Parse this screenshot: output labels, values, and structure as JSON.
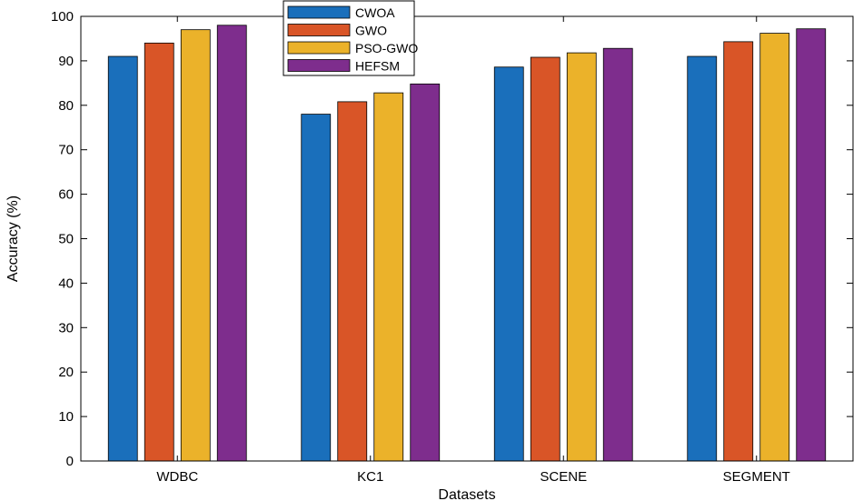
{
  "chart_data": {
    "type": "bar",
    "title": "",
    "xlabel": "Datasets",
    "ylabel": "Accuracy (%)",
    "ylim": [
      0,
      100
    ],
    "yticks": [
      0,
      10,
      20,
      30,
      40,
      50,
      60,
      70,
      80,
      90,
      100
    ],
    "categories": [
      "WDBC",
      "KC1",
      "SCENE",
      "SEGMENT"
    ],
    "series": [
      {
        "name": "CWOA",
        "color": "#1a6fbb",
        "values": [
          91,
          78,
          88.6,
          91
        ]
      },
      {
        "name": "GWO",
        "color": "#d95527",
        "values": [
          94,
          80.8,
          90.8,
          94.3
        ]
      },
      {
        "name": "PSO-GWO",
        "color": "#ebb22a",
        "values": [
          97,
          82.8,
          91.8,
          96.2
        ]
      },
      {
        "name": "HEFSM",
        "color": "#7e2d8d",
        "values": [
          98,
          84.8,
          92.8,
          97.2
        ]
      }
    ],
    "legend_position": "top-left",
    "grid": false
  }
}
